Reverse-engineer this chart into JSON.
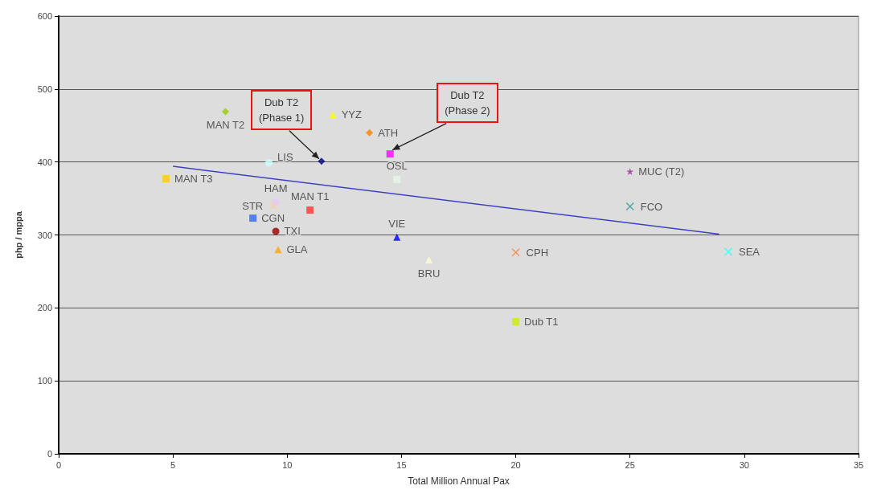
{
  "chart_data": {
    "type": "scatter",
    "xlabel": "Total Million Annual Pax",
    "ylabel": "php / mppa",
    "xlim": [
      0,
      35
    ],
    "xticks": [
      0,
      5,
      10,
      15,
      20,
      25,
      30,
      35
    ],
    "ylim": [
      0,
      600
    ],
    "yticks": [
      0,
      100,
      200,
      300,
      400,
      500,
      600
    ],
    "grid": "y",
    "series": [
      {
        "name": "MAN T2",
        "color": "#99cc00",
        "marker": "diamond",
        "x": [
          7.3
        ],
        "values": [
          469
        ]
      },
      {
        "name": "YYZ",
        "color": "#ffff00",
        "marker": "triangle",
        "x": [
          12.0
        ],
        "values": [
          465
        ]
      },
      {
        "name": "ATH",
        "color": "#ff8000",
        "marker": "diamond",
        "x": [
          13.6
        ],
        "values": [
          440
        ]
      },
      {
        "color": "#000080",
        "marker": "diamond",
        "x": [
          11.5
        ],
        "values": [
          401
        ]
      },
      {
        "color": "#ff00ff",
        "marker": "square",
        "x": [
          14.5
        ],
        "values": [
          411
        ]
      },
      {
        "name": "LIS",
        "color": "#ccffff",
        "marker": "circle",
        "x": [
          9.2
        ],
        "values": [
          399
        ]
      },
      {
        "name": "OSL",
        "color": "#e8f6e8",
        "marker": "square",
        "x": [
          14.8
        ],
        "values": [
          376
        ]
      },
      {
        "name": "MAN T3",
        "color": "#ffcc00",
        "marker": "square",
        "x": [
          4.7
        ],
        "values": [
          377
        ]
      },
      {
        "name": "HAM",
        "color": "#e6c8ff",
        "marker": "circle",
        "x": [
          9.5
        ],
        "values": [
          345
        ]
      },
      {
        "name": "MAN T1",
        "color": "#ff3333",
        "marker": "square",
        "x": [
          11.0
        ],
        "values": [
          334
        ]
      },
      {
        "name": "STR",
        "color": "#ffcc99",
        "marker": "cross",
        "x": [
          9.4
        ],
        "values": [
          340
        ]
      },
      {
        "name": "CGN",
        "color": "#3366ff",
        "marker": "square",
        "x": [
          8.5
        ],
        "values": [
          323
        ]
      },
      {
        "name": "TXI",
        "color": "#990000",
        "marker": "circle",
        "x": [
          9.5
        ],
        "values": [
          305
        ]
      },
      {
        "name": "GLA",
        "color": "#ffa500",
        "marker": "triangle",
        "x": [
          9.6
        ],
        "values": [
          280
        ]
      },
      {
        "name": "VIE",
        "color": "#0000ff",
        "marker": "triangle",
        "x": [
          14.8
        ],
        "values": [
          297
        ]
      },
      {
        "name": "BRU",
        "color": "#ffffcc",
        "marker": "triangle",
        "x": [
          16.2
        ],
        "values": [
          266
        ]
      },
      {
        "name": "CPH",
        "color": "#ff8040",
        "marker": "cross",
        "x": [
          20.0
        ],
        "values": [
          276
        ]
      },
      {
        "name": "Dub T1",
        "color": "#ccee00",
        "marker": "square",
        "x": [
          20.0
        ],
        "values": [
          181
        ]
      },
      {
        "name": "MUC (T2)",
        "color": "#993399",
        "marker": "star",
        "x": [
          25.0
        ],
        "values": [
          387
        ]
      },
      {
        "name": "FCO",
        "color": "#339999",
        "marker": "cross",
        "x": [
          25.0
        ],
        "values": [
          339
        ]
      },
      {
        "name": "SEA",
        "color": "#33ffff",
        "marker": "cross",
        "x": [
          29.3
        ],
        "values": [
          277
        ]
      },
      {
        "type": "line",
        "color": "#4040c0",
        "marker": "none",
        "x": [
          5.0,
          28.9
        ],
        "values": [
          394,
          301
        ]
      }
    ],
    "annotations": [
      {
        "text": "Dub T2\n(Phase 1)",
        "x": 11.5,
        "y": 401
      },
      {
        "text": "Dub T2\n(Phase 2)",
        "x": 14.5,
        "y": 411
      }
    ]
  }
}
